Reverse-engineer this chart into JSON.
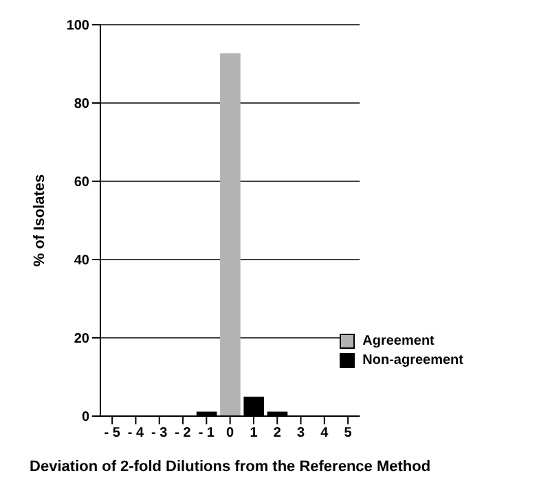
{
  "chart_data": {
    "type": "bar",
    "xlabel": "Deviation of 2-fold Dilutions from the Reference Method",
    "ylabel": "% of Isolates",
    "categories": [
      "- 5",
      "- 4",
      "- 3",
      "- 2",
      "- 1",
      "0",
      "1",
      "2",
      "3",
      "4",
      "5"
    ],
    "series": [
      {
        "name": "Agreement",
        "color": "#b3b3b3",
        "values": [
          null,
          null,
          null,
          null,
          null,
          92.6,
          null,
          null,
          null,
          null,
          null
        ]
      },
      {
        "name": "Non-agreement",
        "color": "#000000",
        "values": [
          null,
          null,
          null,
          null,
          1,
          null,
          4.8,
          1,
          null,
          null,
          null
        ]
      }
    ],
    "stacked": true,
    "ylim": [
      0,
      100
    ],
    "yticks": [
      0,
      20,
      40,
      60,
      80,
      100
    ],
    "grid": "y",
    "legend": "right"
  }
}
